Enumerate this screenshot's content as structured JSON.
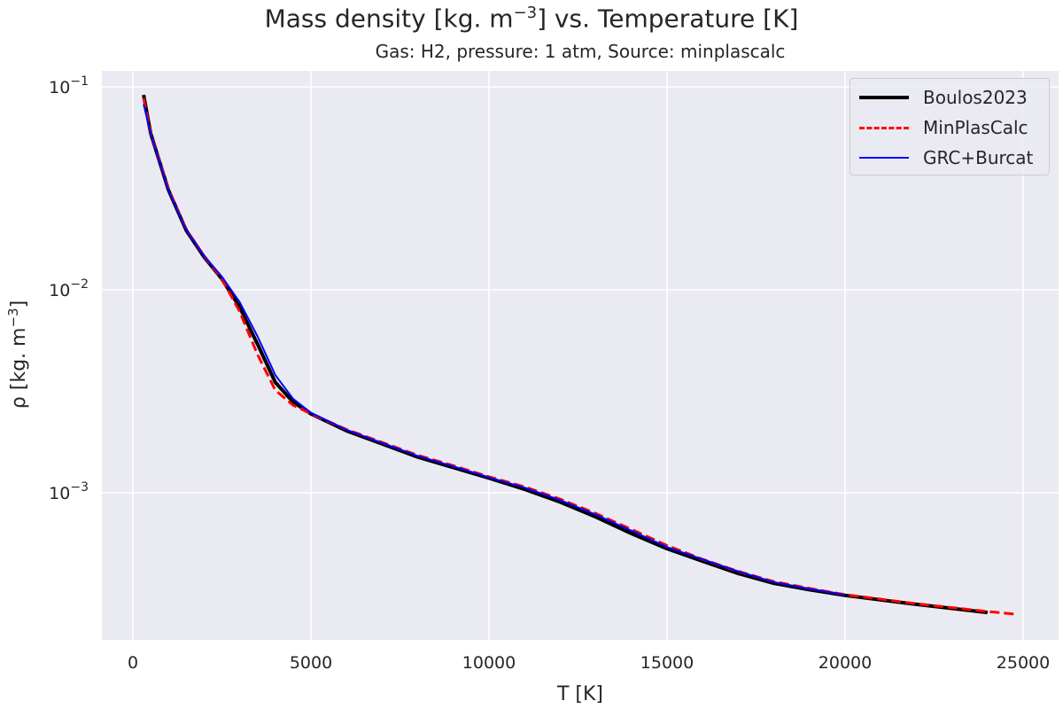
{
  "chart_data": {
    "type": "line",
    "title": "Mass density [kg. m^-3] vs. Temperature [K]",
    "title_parts": {
      "pre": "Mass density [kg. m",
      "sup": "−3",
      "post": "] vs. Temperature [K]"
    },
    "subtitle": "Gas: H2, pressure: 1 atm, Source: minplascalc",
    "xlabel": "T [K]",
    "ylabel_parts": {
      "pre": "ρ [kg. m",
      "sup": "−3",
      "post": "]"
    },
    "xlim": [
      -900,
      26000
    ],
    "ylim": [
      0.000188,
      0.12
    ],
    "yscale": "log",
    "grid": true,
    "background": "#eaeaf2",
    "legend_placement": "top-right",
    "x_ticks": [
      0,
      5000,
      10000,
      15000,
      20000,
      25000
    ],
    "x_tick_labels": [
      "0",
      "5000",
      "10000",
      "15000",
      "20000",
      "25000"
    ],
    "y_ticks": [
      0.1,
      0.01,
      0.001
    ],
    "y_tick_labels": [
      {
        "base": "10",
        "exp": "−1"
      },
      {
        "base": "10",
        "exp": "−2"
      },
      {
        "base": "10",
        "exp": "−3"
      }
    ],
    "series": [
      {
        "name": "Boulos2023",
        "color": "#000000",
        "style": "solid",
        "width": 4,
        "x": [
          300,
          500,
          1000,
          1500,
          2000,
          2500,
          3000,
          3500,
          4000,
          4500,
          5000,
          6000,
          7000,
          8000,
          9000,
          10000,
          11000,
          12000,
          13000,
          14000,
          15000,
          16000,
          17000,
          18000,
          19000,
          20000,
          22000,
          24000
        ],
        "y": [
          0.0913,
          0.059,
          0.031,
          0.0196,
          0.0145,
          0.0113,
          0.0082,
          0.0054,
          0.0035,
          0.0028,
          0.00245,
          0.00202,
          0.00174,
          0.0015,
          0.00133,
          0.00118,
          0.00104,
          0.0009,
          0.00076,
          0.00063,
          0.00053,
          0.00046,
          0.0004,
          0.000358,
          0.000333,
          0.000312,
          0.000282,
          0.000257
        ]
      },
      {
        "name": "MinPlasCalc",
        "color": "#ff0000",
        "style": "dashed",
        "width": 3,
        "x": [
          300,
          500,
          1000,
          1500,
          2000,
          2500,
          3000,
          3500,
          4000,
          4500,
          5000,
          6000,
          7000,
          8000,
          9000,
          10000,
          11000,
          12000,
          13000,
          14000,
          15000,
          16000,
          17000,
          18000,
          19000,
          20000,
          22000,
          24000,
          24800
        ],
        "y": [
          0.088,
          0.059,
          0.0315,
          0.0198,
          0.0147,
          0.0113,
          0.0078,
          0.0048,
          0.0032,
          0.0027,
          0.00245,
          0.00205,
          0.00177,
          0.00153,
          0.00136,
          0.0012,
          0.00107,
          0.00093,
          0.00079,
          0.00066,
          0.00055,
          0.00047,
          0.00041,
          0.000365,
          0.000338,
          0.000315,
          0.000284,
          0.00026,
          0.000252
        ]
      },
      {
        "name": "GRC+Burcat",
        "color": "#0000ff",
        "style": "solid",
        "width": 2,
        "x": [
          300,
          500,
          1000,
          1500,
          2000,
          2500,
          3000,
          3500,
          4000,
          4500,
          5000,
          6000,
          7000,
          8000,
          9000,
          10000,
          11000,
          12000,
          13000,
          14000,
          15000,
          16000,
          17000,
          18000,
          19000,
          20000
        ],
        "y": [
          0.082,
          0.059,
          0.031,
          0.0197,
          0.0147,
          0.0116,
          0.0087,
          0.0059,
          0.0038,
          0.0029,
          0.00248,
          0.00204,
          0.00176,
          0.00152,
          0.00135,
          0.00119,
          0.00106,
          0.00092,
          0.00078,
          0.00065,
          0.00054,
          0.00047,
          0.00041,
          0.000363,
          0.000336,
          0.000314
        ]
      }
    ]
  }
}
